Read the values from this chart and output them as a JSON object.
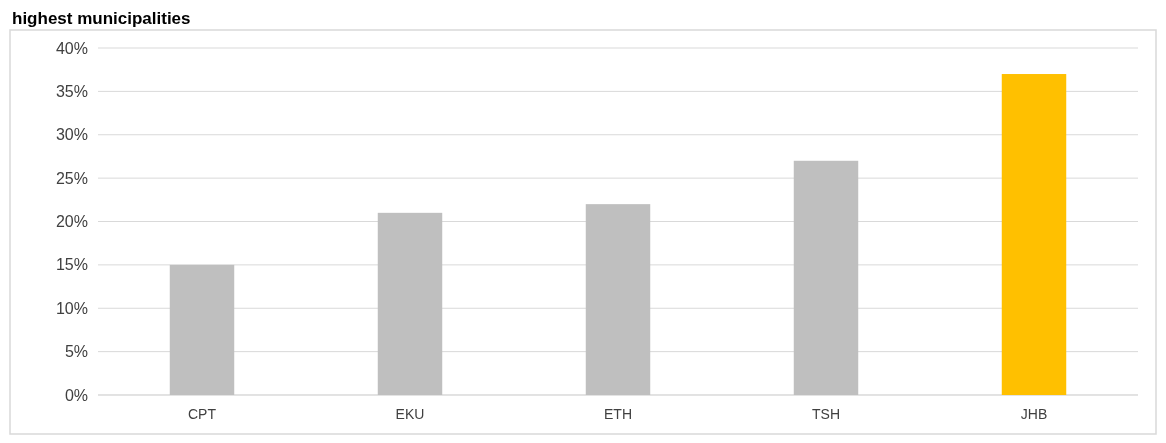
{
  "chart_data": {
    "type": "bar",
    "title": "highest municipalities",
    "categories": [
      "CPT",
      "EKU",
      "ETH",
      "TSH",
      "JHB"
    ],
    "values": [
      15,
      21,
      22,
      27,
      37
    ],
    "colors": [
      "#bfbfbf",
      "#bfbfbf",
      "#bfbfbf",
      "#bfbfbf",
      "#ffc000"
    ],
    "ylim": [
      0,
      40
    ],
    "yticks": [
      {
        "value": 0,
        "label": "0%"
      },
      {
        "value": 5,
        "label": "5%"
      },
      {
        "value": 10,
        "label": "10%"
      },
      {
        "value": 15,
        "label": "15%"
      },
      {
        "value": 20,
        "label": "20%"
      },
      {
        "value": 25,
        "label": "25%"
      },
      {
        "value": 30,
        "label": "30%"
      },
      {
        "value": 35,
        "label": "35%"
      },
      {
        "value": 40,
        "label": "40%"
      }
    ],
    "grid": "y"
  }
}
